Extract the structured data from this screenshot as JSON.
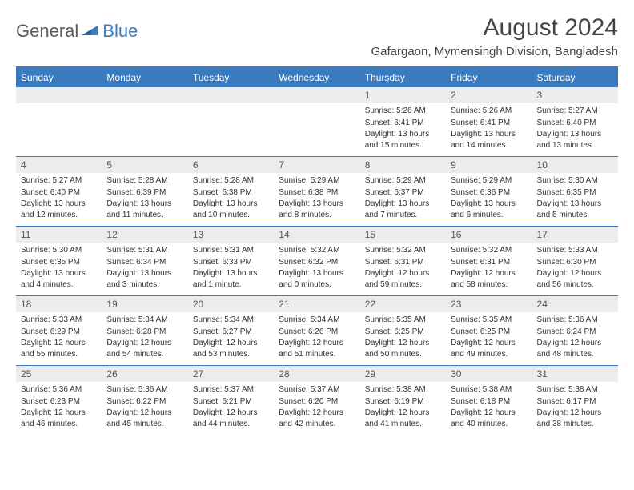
{
  "logo": {
    "text1": "General",
    "text2": "Blue"
  },
  "title": "August 2024",
  "location": "Gafargaon, Mymensingh Division, Bangladesh",
  "colors": {
    "accent": "#3a7bbf",
    "header_bg": "#3a7bbf",
    "header_fg": "#ffffff",
    "daynum_bg": "#ececec",
    "border": "#3a7bbf",
    "text": "#333333",
    "logo_gray": "#5a5a5a",
    "logo_blue": "#3a7bbf",
    "page_bg": "#ffffff"
  },
  "typography": {
    "title_fontsize": 30,
    "location_fontsize": 15,
    "dayheader_fontsize": 12,
    "daynum_fontsize": 12,
    "content_fontsize": 10
  },
  "day_names": [
    "Sunday",
    "Monday",
    "Tuesday",
    "Wednesday",
    "Thursday",
    "Friday",
    "Saturday"
  ],
  "weeks": [
    [
      {
        "n": "",
        "sr": "",
        "ss": "",
        "dl": ""
      },
      {
        "n": "",
        "sr": "",
        "ss": "",
        "dl": ""
      },
      {
        "n": "",
        "sr": "",
        "ss": "",
        "dl": ""
      },
      {
        "n": "",
        "sr": "",
        "ss": "",
        "dl": ""
      },
      {
        "n": "1",
        "sr": "Sunrise: 5:26 AM",
        "ss": "Sunset: 6:41 PM",
        "dl": "Daylight: 13 hours and 15 minutes."
      },
      {
        "n": "2",
        "sr": "Sunrise: 5:26 AM",
        "ss": "Sunset: 6:41 PM",
        "dl": "Daylight: 13 hours and 14 minutes."
      },
      {
        "n": "3",
        "sr": "Sunrise: 5:27 AM",
        "ss": "Sunset: 6:40 PM",
        "dl": "Daylight: 13 hours and 13 minutes."
      }
    ],
    [
      {
        "n": "4",
        "sr": "Sunrise: 5:27 AM",
        "ss": "Sunset: 6:40 PM",
        "dl": "Daylight: 13 hours and 12 minutes."
      },
      {
        "n": "5",
        "sr": "Sunrise: 5:28 AM",
        "ss": "Sunset: 6:39 PM",
        "dl": "Daylight: 13 hours and 11 minutes."
      },
      {
        "n": "6",
        "sr": "Sunrise: 5:28 AM",
        "ss": "Sunset: 6:38 PM",
        "dl": "Daylight: 13 hours and 10 minutes."
      },
      {
        "n": "7",
        "sr": "Sunrise: 5:29 AM",
        "ss": "Sunset: 6:38 PM",
        "dl": "Daylight: 13 hours and 8 minutes."
      },
      {
        "n": "8",
        "sr": "Sunrise: 5:29 AM",
        "ss": "Sunset: 6:37 PM",
        "dl": "Daylight: 13 hours and 7 minutes."
      },
      {
        "n": "9",
        "sr": "Sunrise: 5:29 AM",
        "ss": "Sunset: 6:36 PM",
        "dl": "Daylight: 13 hours and 6 minutes."
      },
      {
        "n": "10",
        "sr": "Sunrise: 5:30 AM",
        "ss": "Sunset: 6:35 PM",
        "dl": "Daylight: 13 hours and 5 minutes."
      }
    ],
    [
      {
        "n": "11",
        "sr": "Sunrise: 5:30 AM",
        "ss": "Sunset: 6:35 PM",
        "dl": "Daylight: 13 hours and 4 minutes."
      },
      {
        "n": "12",
        "sr": "Sunrise: 5:31 AM",
        "ss": "Sunset: 6:34 PM",
        "dl": "Daylight: 13 hours and 3 minutes."
      },
      {
        "n": "13",
        "sr": "Sunrise: 5:31 AM",
        "ss": "Sunset: 6:33 PM",
        "dl": "Daylight: 13 hours and 1 minute."
      },
      {
        "n": "14",
        "sr": "Sunrise: 5:32 AM",
        "ss": "Sunset: 6:32 PM",
        "dl": "Daylight: 13 hours and 0 minutes."
      },
      {
        "n": "15",
        "sr": "Sunrise: 5:32 AM",
        "ss": "Sunset: 6:31 PM",
        "dl": "Daylight: 12 hours and 59 minutes."
      },
      {
        "n": "16",
        "sr": "Sunrise: 5:32 AM",
        "ss": "Sunset: 6:31 PM",
        "dl": "Daylight: 12 hours and 58 minutes."
      },
      {
        "n": "17",
        "sr": "Sunrise: 5:33 AM",
        "ss": "Sunset: 6:30 PM",
        "dl": "Daylight: 12 hours and 56 minutes."
      }
    ],
    [
      {
        "n": "18",
        "sr": "Sunrise: 5:33 AM",
        "ss": "Sunset: 6:29 PM",
        "dl": "Daylight: 12 hours and 55 minutes."
      },
      {
        "n": "19",
        "sr": "Sunrise: 5:34 AM",
        "ss": "Sunset: 6:28 PM",
        "dl": "Daylight: 12 hours and 54 minutes."
      },
      {
        "n": "20",
        "sr": "Sunrise: 5:34 AM",
        "ss": "Sunset: 6:27 PM",
        "dl": "Daylight: 12 hours and 53 minutes."
      },
      {
        "n": "21",
        "sr": "Sunrise: 5:34 AM",
        "ss": "Sunset: 6:26 PM",
        "dl": "Daylight: 12 hours and 51 minutes."
      },
      {
        "n": "22",
        "sr": "Sunrise: 5:35 AM",
        "ss": "Sunset: 6:25 PM",
        "dl": "Daylight: 12 hours and 50 minutes."
      },
      {
        "n": "23",
        "sr": "Sunrise: 5:35 AM",
        "ss": "Sunset: 6:25 PM",
        "dl": "Daylight: 12 hours and 49 minutes."
      },
      {
        "n": "24",
        "sr": "Sunrise: 5:36 AM",
        "ss": "Sunset: 6:24 PM",
        "dl": "Daylight: 12 hours and 48 minutes."
      }
    ],
    [
      {
        "n": "25",
        "sr": "Sunrise: 5:36 AM",
        "ss": "Sunset: 6:23 PM",
        "dl": "Daylight: 12 hours and 46 minutes."
      },
      {
        "n": "26",
        "sr": "Sunrise: 5:36 AM",
        "ss": "Sunset: 6:22 PM",
        "dl": "Daylight: 12 hours and 45 minutes."
      },
      {
        "n": "27",
        "sr": "Sunrise: 5:37 AM",
        "ss": "Sunset: 6:21 PM",
        "dl": "Daylight: 12 hours and 44 minutes."
      },
      {
        "n": "28",
        "sr": "Sunrise: 5:37 AM",
        "ss": "Sunset: 6:20 PM",
        "dl": "Daylight: 12 hours and 42 minutes."
      },
      {
        "n": "29",
        "sr": "Sunrise: 5:38 AM",
        "ss": "Sunset: 6:19 PM",
        "dl": "Daylight: 12 hours and 41 minutes."
      },
      {
        "n": "30",
        "sr": "Sunrise: 5:38 AM",
        "ss": "Sunset: 6:18 PM",
        "dl": "Daylight: 12 hours and 40 minutes."
      },
      {
        "n": "31",
        "sr": "Sunrise: 5:38 AM",
        "ss": "Sunset: 6:17 PM",
        "dl": "Daylight: 12 hours and 38 minutes."
      }
    ]
  ]
}
